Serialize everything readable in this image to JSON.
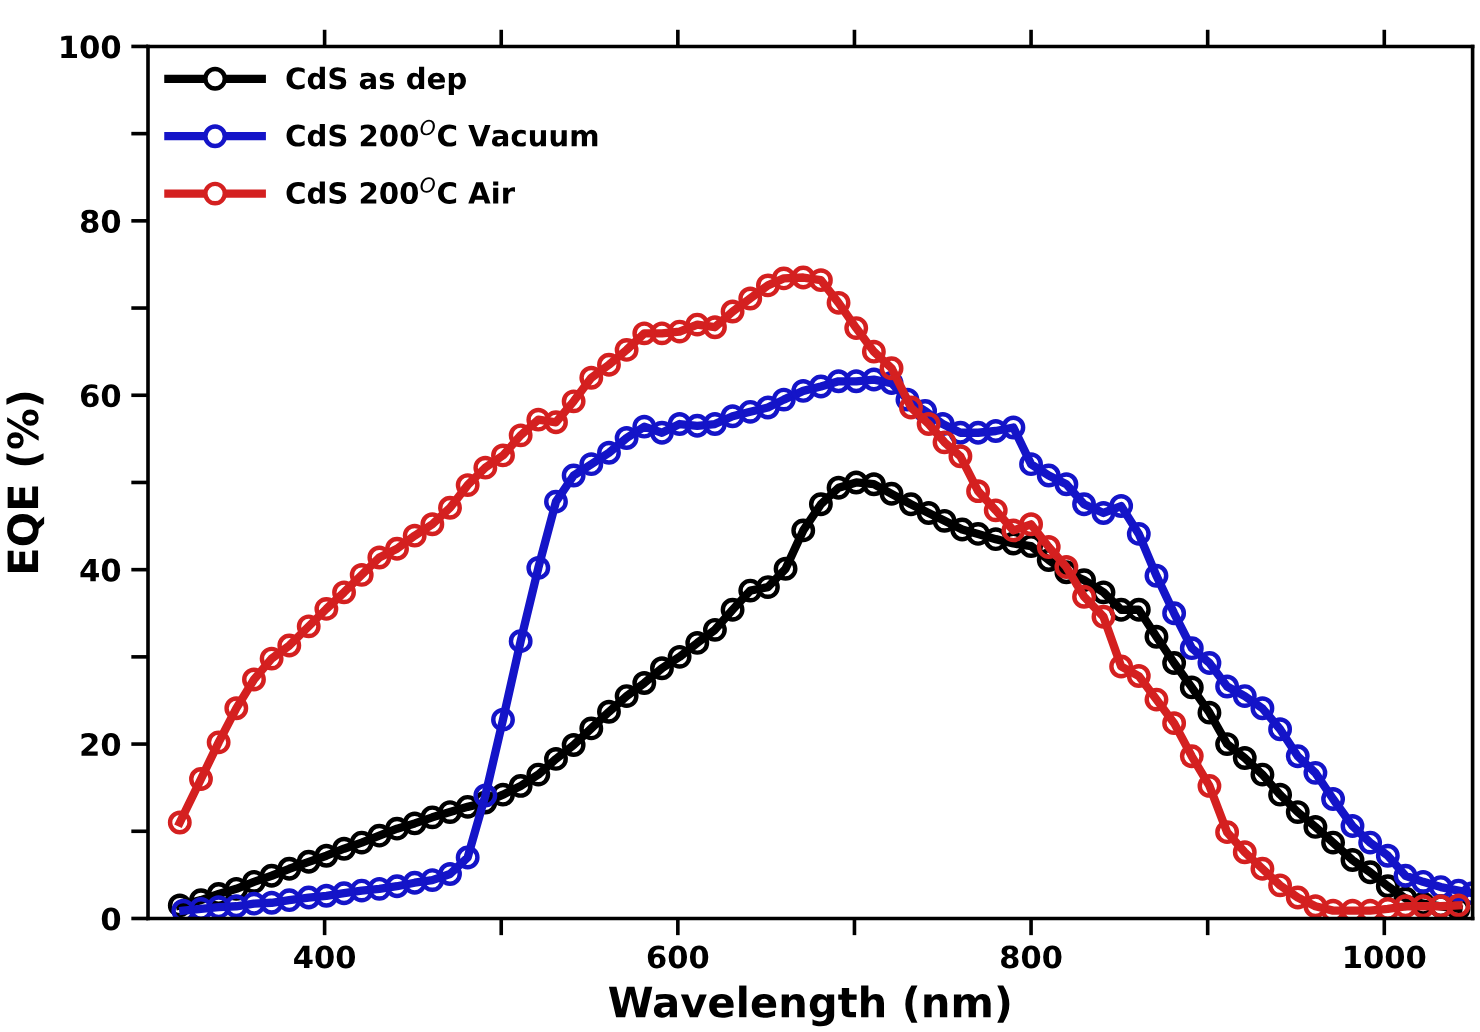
{
  "chart_data": {
    "type": "line",
    "xlabel": "Wavelength (nm)",
    "ylabel": "EQE (%)",
    "xlim": [
      300,
      1050
    ],
    "xticks": [
      400,
      {
        "value": 500,
        "label": null
      },
      600,
      {
        "value": 700,
        "label": null
      },
      800,
      {
        "value": 900,
        "label": null
      },
      1000
    ],
    "ylim": [
      0,
      100
    ],
    "yticks": [
      0,
      {
        "value": 10,
        "label": null
      },
      20,
      {
        "value": 30,
        "label": null
      },
      40,
      {
        "value": 50,
        "label": null
      },
      60,
      {
        "value": 70,
        "label": null
      },
      80,
      {
        "value": 90,
        "label": null
      },
      100
    ],
    "grid": false,
    "legend": "top left",
    "marker": "circle",
    "line_style": "solid",
    "series": [
      {
        "name": "CdS as dep",
        "color": "#000000",
        "x": [
          318,
          330,
          340,
          350,
          360,
          370,
          380,
          391,
          401,
          411,
          421,
          431,
          441,
          451,
          461,
          471,
          481,
          491,
          501,
          511,
          521,
          531,
          541,
          551,
          561,
          571,
          581,
          591,
          601,
          611,
          621,
          631,
          641,
          651,
          661,
          671,
          681,
          691,
          701,
          711,
          721,
          732,
          742,
          751,
          761,
          770,
          780,
          790,
          800,
          810,
          820,
          830,
          841,
          851,
          861,
          871,
          881,
          891,
          901,
          911,
          921,
          931,
          941,
          951,
          961,
          971,
          982,
          992,
          1002,
          1012,
          1022,
          1032,
          1042
        ],
        "values": [
          1.5,
          2.1,
          2.8,
          3.4,
          4.2,
          4.9,
          5.7,
          6.5,
          7.2,
          8,
          8.7,
          9.5,
          10.3,
          10.9,
          11.6,
          12.2,
          12.8,
          13.3,
          14.2,
          15.2,
          16.5,
          18.3,
          19.9,
          21.8,
          23.7,
          25.5,
          27,
          28.7,
          30,
          31.6,
          33.1,
          35.4,
          37.6,
          38,
          40.1,
          44.5,
          47.5,
          49.4,
          50,
          49.8,
          48.7,
          47.5,
          46.5,
          45.6,
          44.6,
          44.1,
          43.5,
          43,
          42.7,
          41.1,
          39.7,
          38.8,
          37.4,
          35.4,
          35.4,
          32.3,
          29.3,
          26.5,
          23.6,
          20,
          18.4,
          16.5,
          14.2,
          12.2,
          10.5,
          8.7,
          6.7,
          5.3,
          3.7,
          2.3,
          1.7,
          1.4,
          1.1
        ]
      },
      {
        "name": "CdS 200$^{O}$C Vacuum",
        "color": "#1414c8",
        "x": [
          320,
          330,
          340,
          350,
          360,
          370,
          380,
          391,
          401,
          411,
          421,
          431,
          441,
          451,
          461,
          471,
          481,
          491,
          501,
          511,
          521,
          531,
          541,
          551,
          561,
          571,
          581,
          591,
          601,
          611,
          621,
          631,
          641,
          651,
          660,
          671,
          681,
          691,
          701,
          711,
          721,
          730,
          740,
          750,
          760,
          770,
          780,
          790,
          800,
          810,
          820,
          830,
          841,
          851,
          861,
          871,
          881,
          891,
          901,
          911,
          921,
          931,
          941,
          951,
          961,
          971,
          982,
          992,
          1002,
          1012,
          1022,
          1032,
          1042,
          1050
        ],
        "values": [
          0.9,
          1.1,
          1.3,
          1.4,
          1.7,
          1.8,
          2.1,
          2.4,
          2.6,
          2.9,
          3.2,
          3.4,
          3.7,
          4.1,
          4.4,
          5.1,
          7,
          14.1,
          22.8,
          31.8,
          40.2,
          47.8,
          50.8,
          52.1,
          53.4,
          55.1,
          56.4,
          55.7,
          56.7,
          56.5,
          56.7,
          57.6,
          58.1,
          58.6,
          59.5,
          60.5,
          61,
          61.6,
          61.6,
          61.8,
          61.4,
          59.5,
          58.2,
          56.7,
          55.7,
          55.7,
          55.9,
          56.3,
          52.1,
          50.8,
          49.8,
          47.5,
          46.5,
          47.3,
          44.1,
          39.3,
          35,
          31,
          29.3,
          26.6,
          25.5,
          24.1,
          21.7,
          18.6,
          16.7,
          13.7,
          10.6,
          8.7,
          7.2,
          4.9,
          4.2,
          3.6,
          3.2,
          2.9
        ]
      },
      {
        "name": "CdS 200$^{O}$C Air",
        "color": "#d42020",
        "x": [
          318,
          330,
          340,
          350,
          360,
          370,
          380,
          391,
          401,
          411,
          421,
          431,
          441,
          451,
          461,
          471,
          481,
          491,
          501,
          511,
          521,
          531,
          541,
          551,
          561,
          571,
          581,
          591,
          601,
          611,
          621,
          631,
          641,
          651,
          660,
          671,
          681,
          691,
          701,
          711,
          721,
          732,
          742,
          751,
          760,
          770,
          780,
          790,
          800,
          810,
          820,
          830,
          841,
          851,
          861,
          871,
          881,
          891,
          901,
          911,
          921,
          931,
          941,
          951,
          961,
          971,
          982,
          992,
          1002,
          1012,
          1022,
          1032,
          1042
        ],
        "values": [
          11,
          16,
          20.2,
          24.1,
          27.4,
          29.8,
          31.3,
          33.5,
          35.5,
          37.4,
          39.4,
          41.4,
          42.4,
          43.9,
          45.2,
          47.1,
          49.7,
          51.7,
          53.1,
          55.4,
          57.2,
          56.9,
          59.3,
          62,
          63.5,
          65.2,
          67.1,
          67.1,
          67.3,
          68.1,
          67.8,
          69.6,
          71.1,
          72.6,
          73.4,
          73.5,
          73.2,
          70.6,
          67.7,
          65,
          63.1,
          58.6,
          56.7,
          54.6,
          53,
          49,
          46.8,
          44.5,
          45.2,
          42.6,
          40.3,
          36.9,
          34.6,
          28.9,
          27.8,
          25.1,
          22.4,
          18.6,
          15.2,
          9.9,
          7.6,
          5.7,
          3.8,
          2.4,
          1.4,
          0.9,
          0.9,
          0.9,
          1.1,
          1.4,
          1.4,
          1.4,
          1.5
        ]
      }
    ]
  }
}
